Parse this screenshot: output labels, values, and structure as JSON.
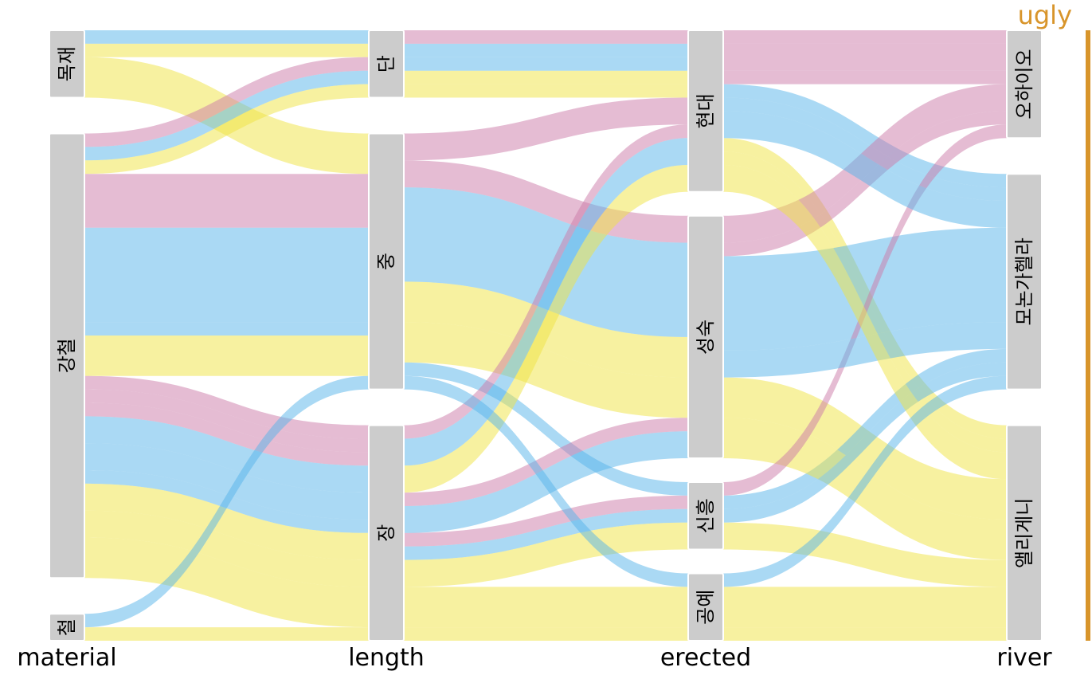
{
  "corner_tag": {
    "text": "ugly",
    "color": "#d8952b"
  },
  "chart_data": {
    "type": "alluvial",
    "title": "",
    "axes": [
      "material",
      "length",
      "erected",
      "river"
    ],
    "categories": {
      "material": [
        "목재",
        "강철",
        "철"
      ],
      "length": [
        "단",
        "중",
        "장"
      ],
      "erected": [
        "현대",
        "성숙",
        "신흥",
        "공예"
      ],
      "river": [
        "오하이오",
        "모논가헬라",
        "앨리게니"
      ]
    },
    "fill_colors": {
      "오하이오": "#cc79a7",
      "모논가헬라": "#56b4e9",
      "앨리게니": "#f0e442"
    },
    "flows": [
      {
        "material": "목재",
        "length": "단",
        "erected": "현대",
        "river": "모논가헬라",
        "count": 1
      },
      {
        "material": "목재",
        "length": "단",
        "erected": "현대",
        "river": "앨리게니",
        "count": 1
      },
      {
        "material": "목재",
        "length": "중",
        "erected": "성숙",
        "river": "앨리게니",
        "count": 3
      },
      {
        "material": "강철",
        "length": "단",
        "erected": "현대",
        "river": "오하이오",
        "count": 1
      },
      {
        "material": "강철",
        "length": "단",
        "erected": "현대",
        "river": "모논가헬라",
        "count": 1
      },
      {
        "material": "강철",
        "length": "단",
        "erected": "현대",
        "river": "앨리게니",
        "count": 1
      },
      {
        "material": "강철",
        "length": "중",
        "erected": "현대",
        "river": "오하이오",
        "count": 2
      },
      {
        "material": "강철",
        "length": "중",
        "erected": "성숙",
        "river": "오하이오",
        "count": 2
      },
      {
        "material": "강철",
        "length": "중",
        "erected": "성숙",
        "river": "모논가헬라",
        "count": 7
      },
      {
        "material": "강철",
        "length": "중",
        "erected": "신흥",
        "river": "모논가헬라",
        "count": 1
      },
      {
        "material": "강철",
        "length": "중",
        "erected": "성숙",
        "river": "앨리게니",
        "count": 3
      },
      {
        "material": "강철",
        "length": "장",
        "erected": "현대",
        "river": "오하이오",
        "count": 1
      },
      {
        "material": "강철",
        "length": "장",
        "erected": "성숙",
        "river": "오하이오",
        "count": 1
      },
      {
        "material": "강철",
        "length": "장",
        "erected": "신흥",
        "river": "오하이오",
        "count": 1
      },
      {
        "material": "강철",
        "length": "장",
        "erected": "현대",
        "river": "모논가헬라",
        "count": 2
      },
      {
        "material": "강철",
        "length": "장",
        "erected": "성숙",
        "river": "모논가헬라",
        "count": 2
      },
      {
        "material": "강철",
        "length": "장",
        "erected": "신흥",
        "river": "모논가헬라",
        "count": 1
      },
      {
        "material": "강철",
        "length": "장",
        "erected": "현대",
        "river": "앨리게니",
        "count": 2
      },
      {
        "material": "강철",
        "length": "장",
        "erected": "신흥",
        "river": "앨리게니",
        "count": 2
      },
      {
        "material": "강철",
        "length": "장",
        "erected": "공예",
        "river": "앨리게니",
        "count": 3
      },
      {
        "material": "철",
        "length": "중",
        "erected": "공예",
        "river": "모논가헬라",
        "count": 1
      },
      {
        "material": "철",
        "length": "장",
        "erected": "공예",
        "river": "앨리게니",
        "count": 1
      }
    ]
  }
}
